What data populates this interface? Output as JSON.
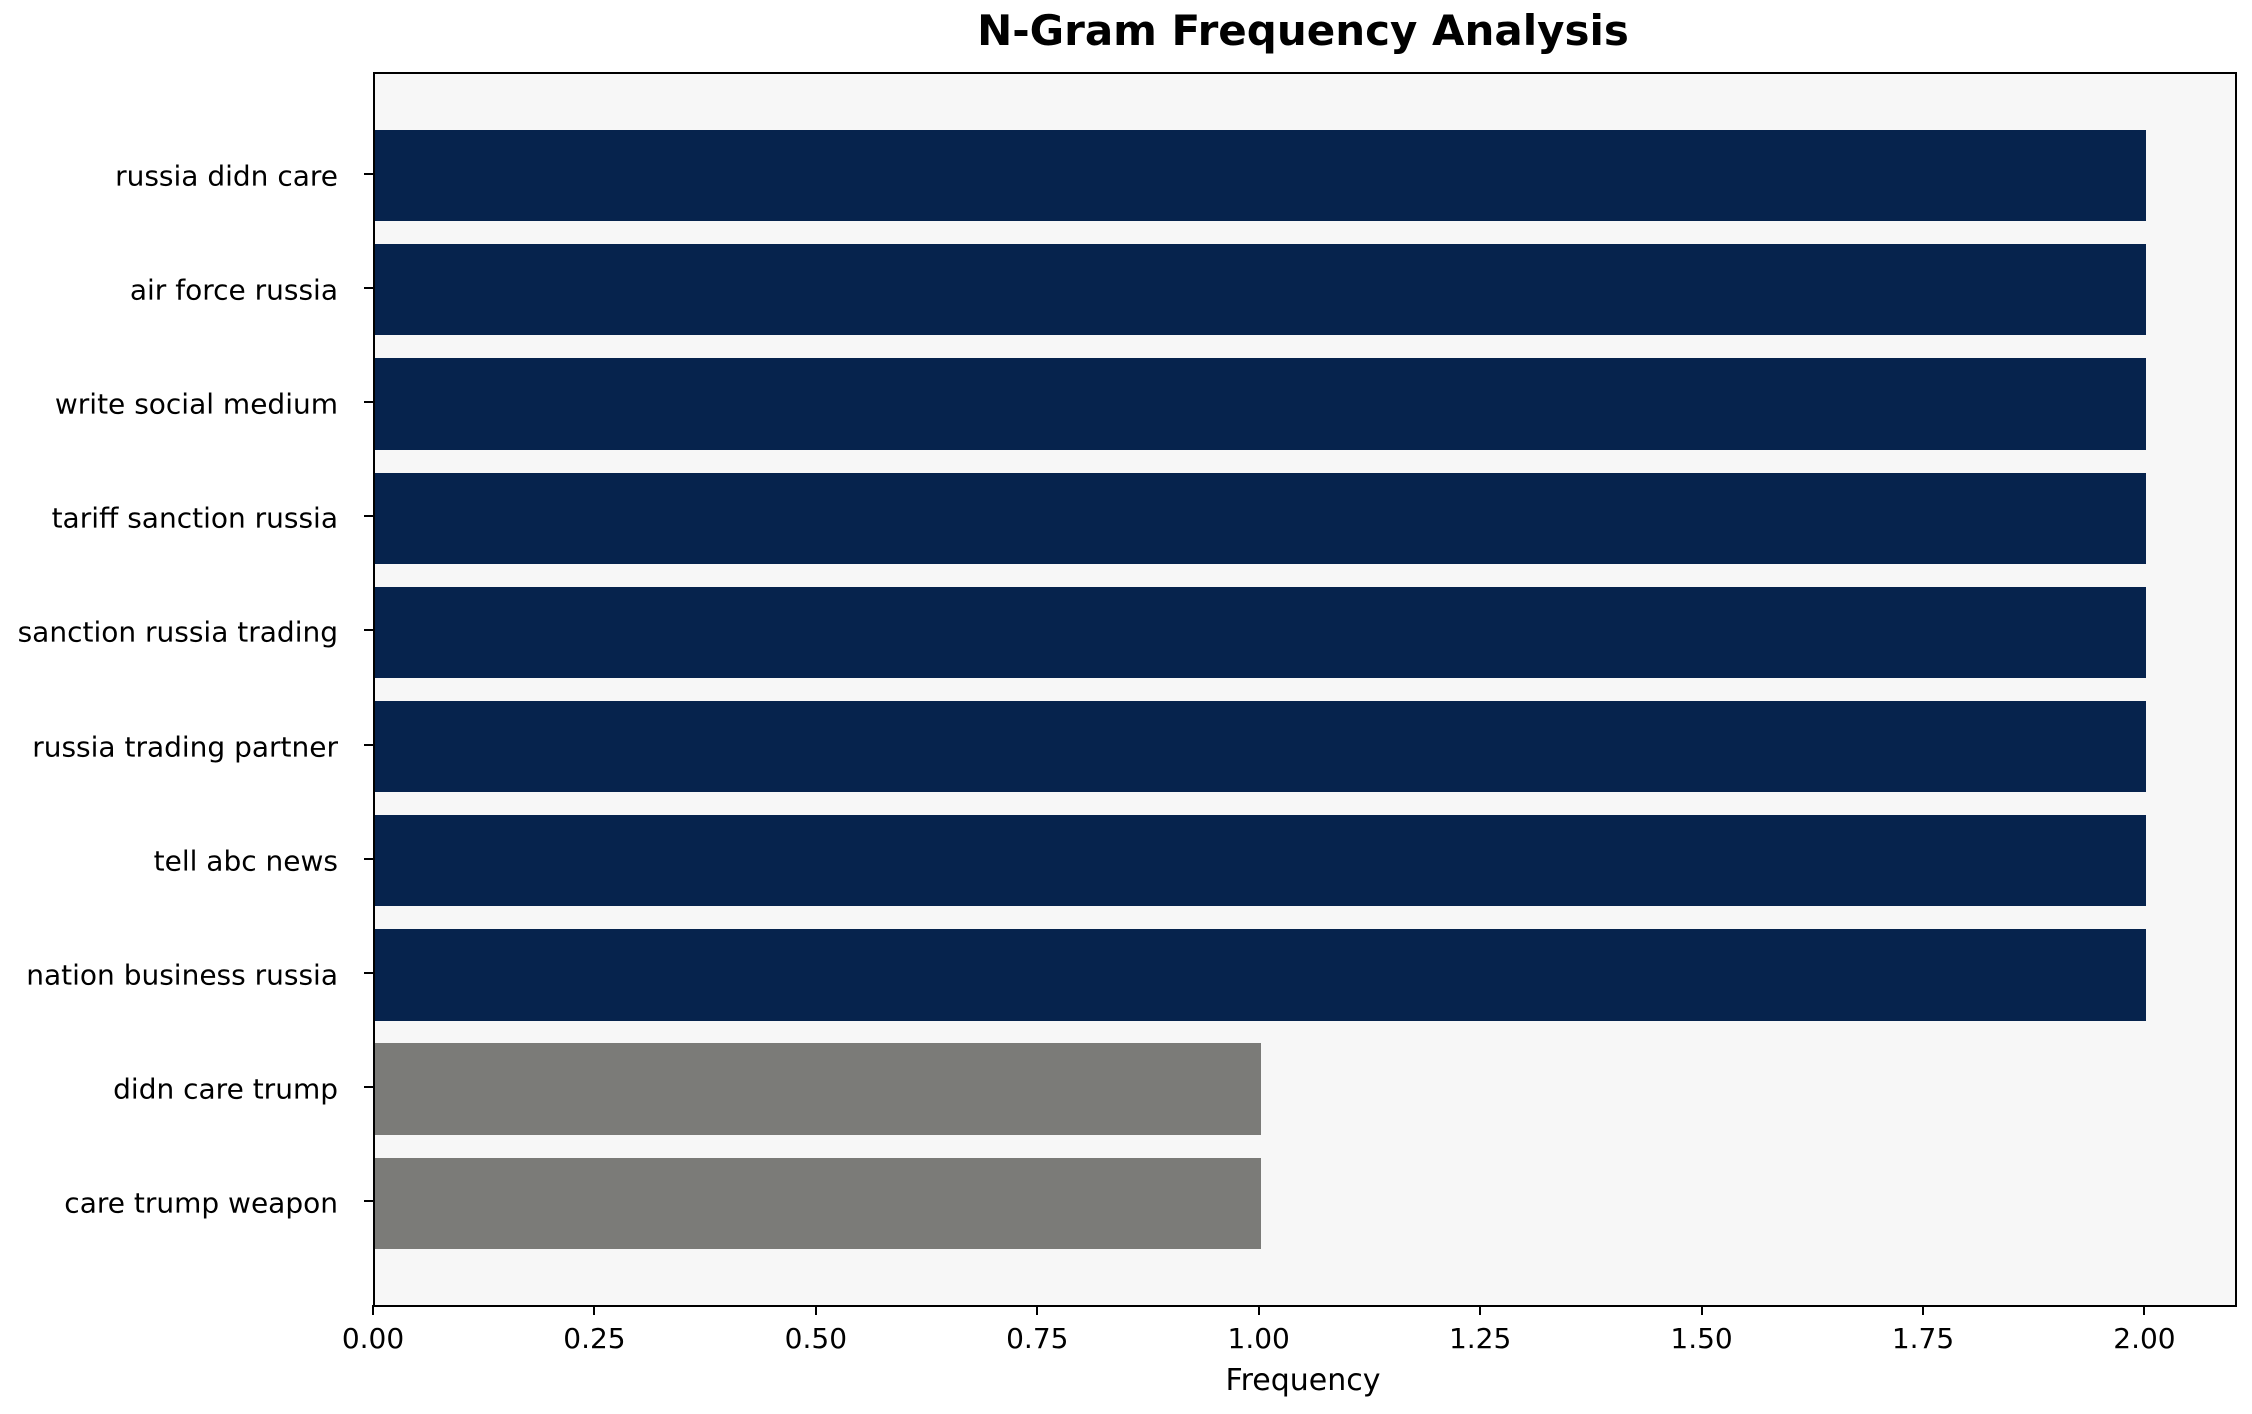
{
  "chart_data": {
    "type": "bar",
    "orientation": "horizontal",
    "title": "N-Gram Frequency Analysis",
    "xlabel": "Frequency",
    "ylabel": "",
    "categories": [
      "russia didn care",
      "air force russia",
      "write social medium",
      "tariff sanction russia",
      "sanction russia trading",
      "russia trading partner",
      "tell abc news",
      "nation business russia",
      "didn care trump",
      "care trump weapon"
    ],
    "values": [
      2,
      2,
      2,
      2,
      2,
      2,
      2,
      2,
      1,
      1
    ],
    "bar_colors": [
      "#06234d",
      "#06234d",
      "#06234d",
      "#06234d",
      "#06234d",
      "#06234d",
      "#06234d",
      "#06234d",
      "#7b7b78",
      "#7b7b78"
    ],
    "xlim": [
      0,
      2.1
    ],
    "xtick_values": [
      0,
      0.25,
      0.5,
      0.75,
      1.0,
      1.25,
      1.5,
      1.75,
      2.0
    ],
    "xtick_labels": [
      "0.00",
      "0.25",
      "0.50",
      "0.75",
      "1.00",
      "1.25",
      "1.50",
      "1.75",
      "2.00"
    ],
    "grid": false,
    "legend": null,
    "colors": {
      "navy_bar": "#06234d",
      "gray_bar": "#7b7b78",
      "plot_background": "#f7f7f7",
      "figure_background": "#ffffff",
      "axis_line": "#000000",
      "text": "#000000"
    }
  }
}
